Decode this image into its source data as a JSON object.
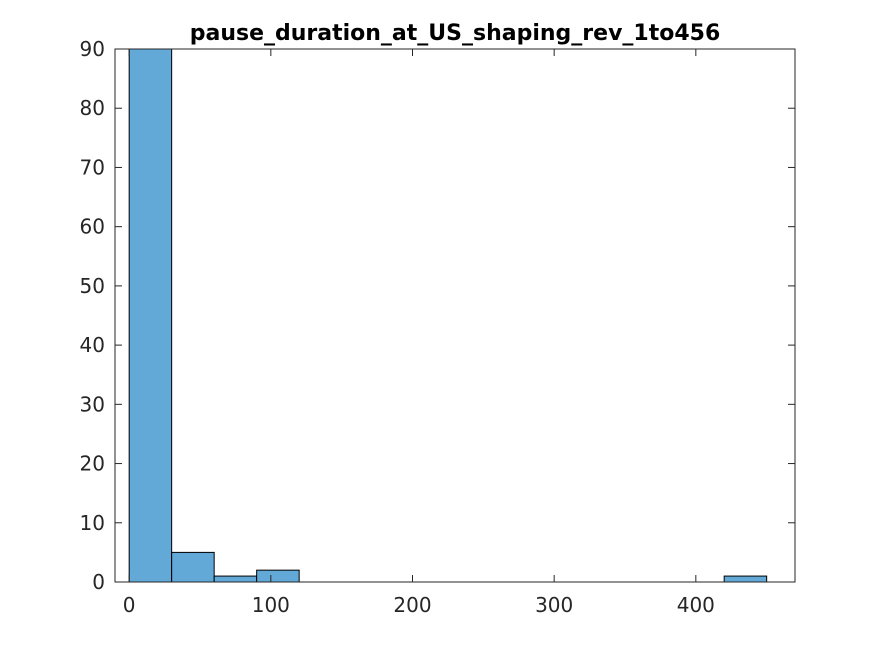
{
  "chart_data": {
    "type": "bar",
    "title": "pause_duration_at_US_shaping_rev_1to456",
    "xlabel": "",
    "ylabel": "",
    "xlim": [
      -10,
      470
    ],
    "ylim": [
      0,
      90
    ],
    "xticks": [
      0,
      100,
      200,
      300,
      400
    ],
    "yticks": [
      0,
      10,
      20,
      30,
      40,
      50,
      60,
      70,
      80,
      90
    ],
    "bin_width": 30,
    "bins": [
      {
        "start": 0,
        "end": 30,
        "count": 90
      },
      {
        "start": 30,
        "end": 60,
        "count": 5
      },
      {
        "start": 60,
        "end": 90,
        "count": 1
      },
      {
        "start": 90,
        "end": 120,
        "count": 2
      },
      {
        "start": 420,
        "end": 450,
        "count": 1
      }
    ],
    "bar_color": "#62a9d8",
    "edge_color": "#000000",
    "grid": false,
    "box": true
  }
}
